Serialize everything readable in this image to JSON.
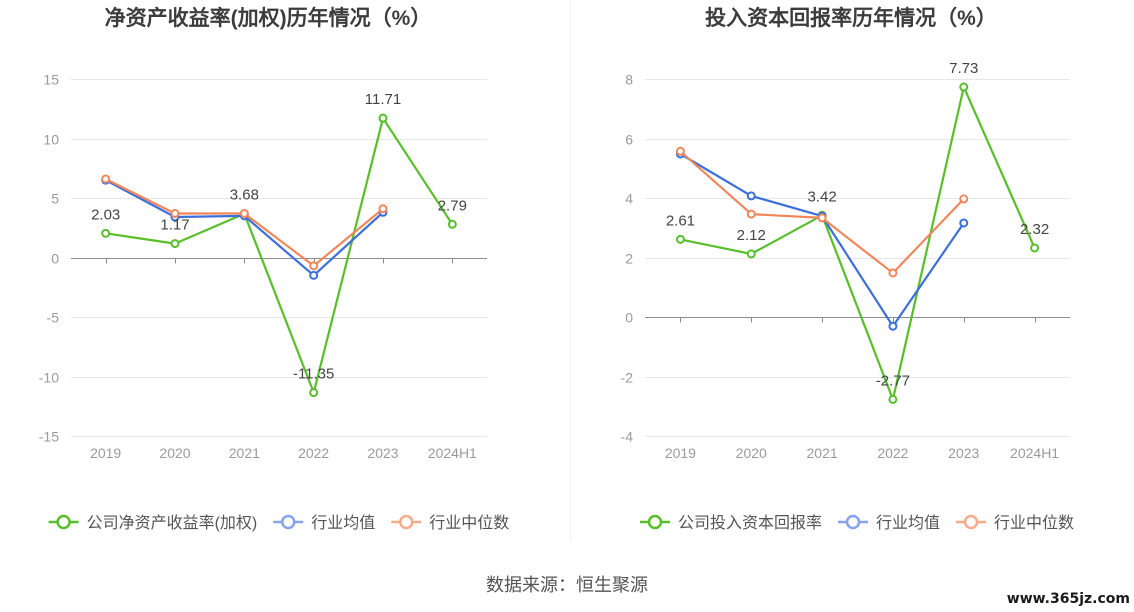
{
  "chart_data": [
    {
      "type": "line",
      "title": "净资产收益率(加权)历年情况（%）",
      "xlabel": "",
      "ylabel": "",
      "categories": [
        "2019",
        "2020",
        "2021",
        "2022",
        "2023",
        "2024H1"
      ],
      "ylim": [
        -15,
        15
      ],
      "yticks": [
        15,
        10,
        5,
        0,
        -5,
        -10,
        -15
      ],
      "grid": true,
      "legend": "bottom",
      "series": [
        {
          "name": "公司净资产收益率(加权)",
          "values": [
            2.03,
            1.17,
            3.68,
            -11.35,
            11.71,
            2.79
          ],
          "show_labels": true,
          "color": "#58bf2a",
          "legend_color": "#58bf2a"
        },
        {
          "name": "行业均值",
          "values": [
            6.5,
            3.4,
            3.5,
            -1.5,
            3.8,
            null
          ],
          "show_labels": false,
          "color": "#3d6fdb",
          "legend_color": "#86a3eb"
        },
        {
          "name": "行业中位数",
          "values": [
            6.6,
            3.7,
            3.7,
            -0.7,
            4.1,
            null
          ],
          "show_labels": false,
          "color": "#f0875b",
          "legend_color": "#f6ab8d"
        }
      ]
    },
    {
      "type": "line",
      "title": "投入资本回报率历年情况（%）",
      "xlabel": "",
      "ylabel": "",
      "categories": [
        "2019",
        "2020",
        "2021",
        "2022",
        "2023",
        "2024H1"
      ],
      "ylim": [
        -4,
        8
      ],
      "yticks": [
        8,
        6,
        4,
        2,
        0,
        -2,
        -4
      ],
      "grid": true,
      "legend": "bottom",
      "series": [
        {
          "name": "公司投入资本回报率",
          "values": [
            2.61,
            2.12,
            3.42,
            -2.77,
            7.73,
            2.32
          ],
          "show_labels": true,
          "color": "#58bf2a",
          "legend_color": "#58bf2a"
        },
        {
          "name": "行业均值",
          "values": [
            5.48,
            4.07,
            3.39,
            -0.31,
            3.16,
            null
          ],
          "show_labels": false,
          "color": "#3d6fdb",
          "legend_color": "#86a3eb"
        },
        {
          "name": "行业中位数",
          "values": [
            5.57,
            3.46,
            3.33,
            1.48,
            3.97,
            null
          ],
          "show_labels": false,
          "color": "#f0875b",
          "legend_color": "#f6ab8d"
        }
      ]
    }
  ],
  "footer": {
    "source": "数据来源：恒生聚源"
  },
  "watermark": {
    "text": "www.365jz.com"
  }
}
